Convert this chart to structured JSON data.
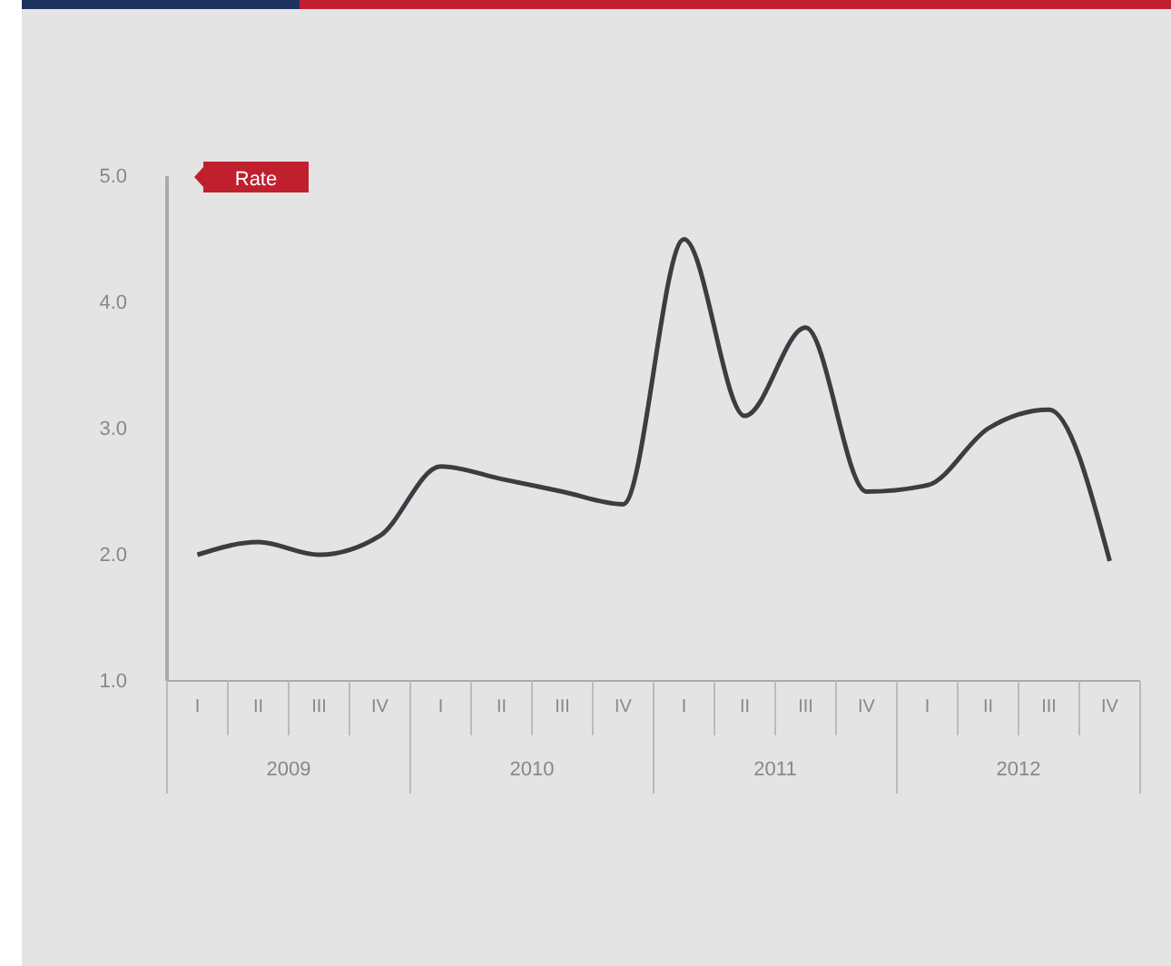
{
  "chart_data": {
    "type": "line",
    "categories": [
      "I",
      "II",
      "III",
      "IV",
      "I",
      "II",
      "III",
      "IV",
      "I",
      "II",
      "III",
      "IV",
      "I",
      "II",
      "III",
      "IV"
    ],
    "series": [
      {
        "name": "Rate",
        "color": "#3a3d42",
        "values": [
          2.0,
          2.1,
          2.0,
          2.15,
          2.7,
          2.6,
          2.5,
          2.4,
          4.5,
          3.1,
          3.8,
          2.5,
          2.55,
          3.0,
          3.15,
          1.95
        ]
      }
    ],
    "ylim": [
      1,
      5
    ],
    "yticks": [
      {
        "value": 1,
        "label": "1.0"
      },
      {
        "value": 2,
        "label": "2.0"
      },
      {
        "value": 3,
        "label": "3.0"
      },
      {
        "value": 4,
        "label": "4.0"
      },
      {
        "value": 5,
        "label": "5.0"
      }
    ],
    "annotations": [
      "2009",
      "2010",
      "2011",
      "2012"
    ],
    "legend": "top left",
    "grid": false,
    "marker": "none",
    "line_style": "solid"
  }
}
